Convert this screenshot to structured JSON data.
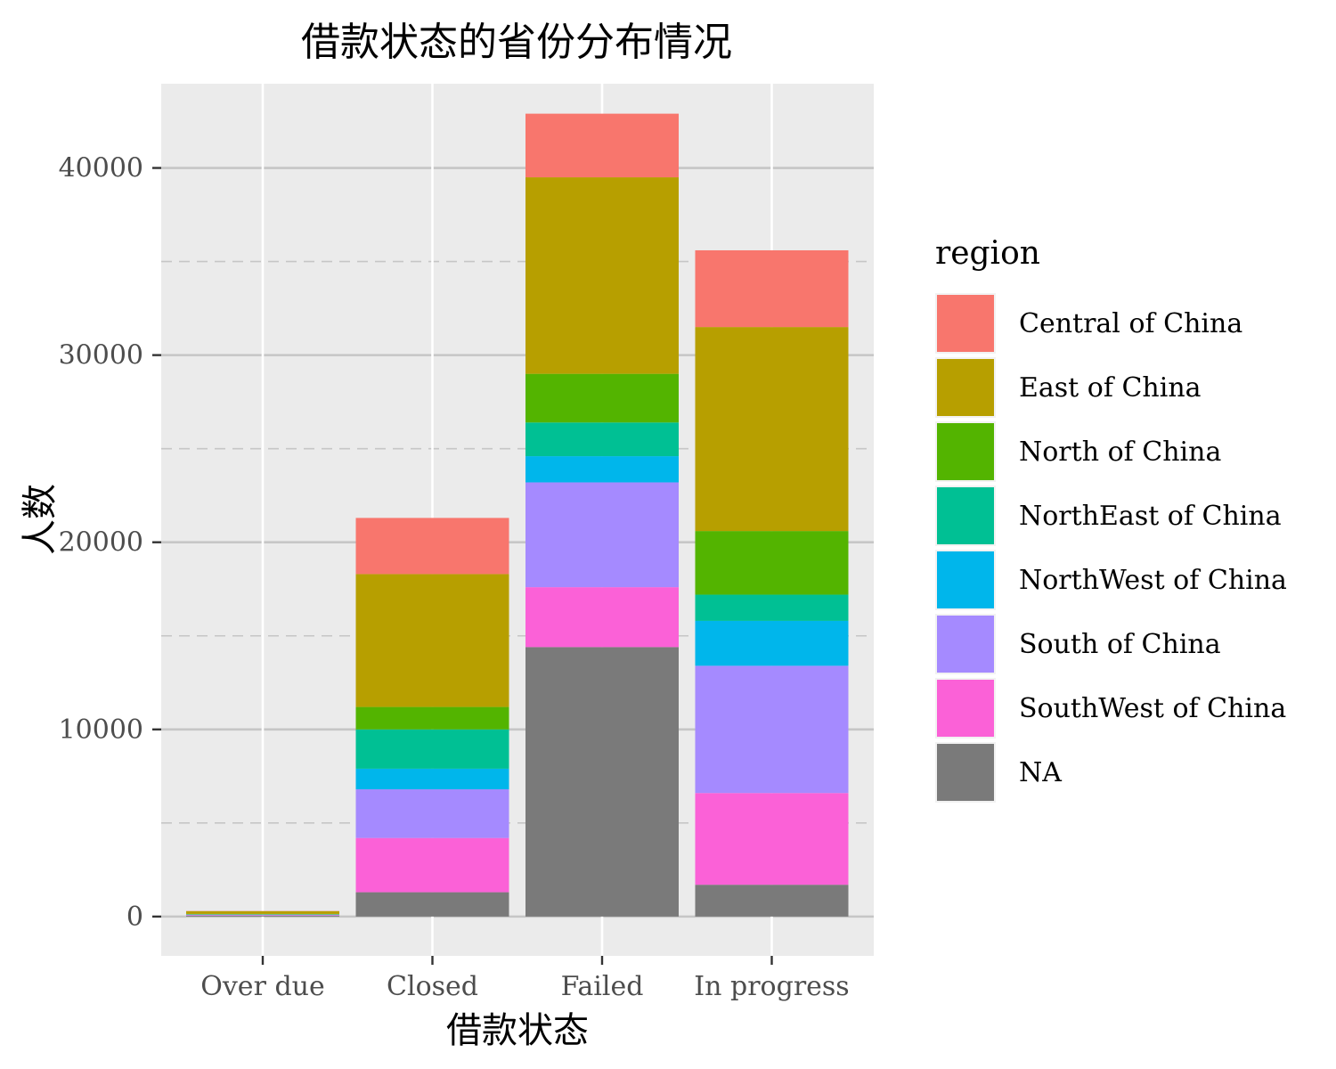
{
  "chart_data": {
    "type": "bar",
    "stacked": true,
    "title": "借款状态的省份分布情况",
    "xlabel": "借款状态",
    "ylabel": "人数",
    "categories": [
      "Over due",
      "Closed",
      "Failed",
      "In progress"
    ],
    "ylim": [
      -2100,
      44500
    ],
    "y_ticks": [
      0,
      10000,
      20000,
      30000,
      40000
    ],
    "y_tick_labels": [
      "0",
      "10000",
      "20000",
      "30000",
      "40000"
    ],
    "grid": true,
    "legend_title": "region",
    "legend_position": "right",
    "series": [
      {
        "name": "Central of China",
        "color": "#F8766D",
        "values": [
          10,
          3000,
          3400,
          4100
        ]
      },
      {
        "name": "East of China",
        "color": "#B79F00",
        "values": [
          150,
          7100,
          10500,
          10900
        ]
      },
      {
        "name": "North of China",
        "color": "#53B400",
        "values": [
          20,
          1200,
          2600,
          3400
        ]
      },
      {
        "name": "NorthEast of China",
        "color": "#00C094",
        "values": [
          10,
          2100,
          1800,
          1400
        ]
      },
      {
        "name": "NorthWest of China",
        "color": "#00B6EB",
        "values": [
          10,
          1100,
          1400,
          2400
        ]
      },
      {
        "name": "South of China",
        "color": "#A58AFF",
        "values": [
          30,
          2600,
          5600,
          6800
        ]
      },
      {
        "name": "SouthWest of China",
        "color": "#FB61D7",
        "values": [
          20,
          2900,
          3200,
          4900
        ]
      },
      {
        "name": "NA",
        "color": "#7A7A7A",
        "values": [
          50,
          1300,
          14400,
          1700
        ]
      }
    ]
  },
  "colors": {
    "panel_background": "#EBEBEB",
    "grid_major": "#FFFFFF",
    "grid_minor": "#F4F4F4",
    "axis_ticks": "#333333",
    "tick_text": "#4D4D4D"
  }
}
